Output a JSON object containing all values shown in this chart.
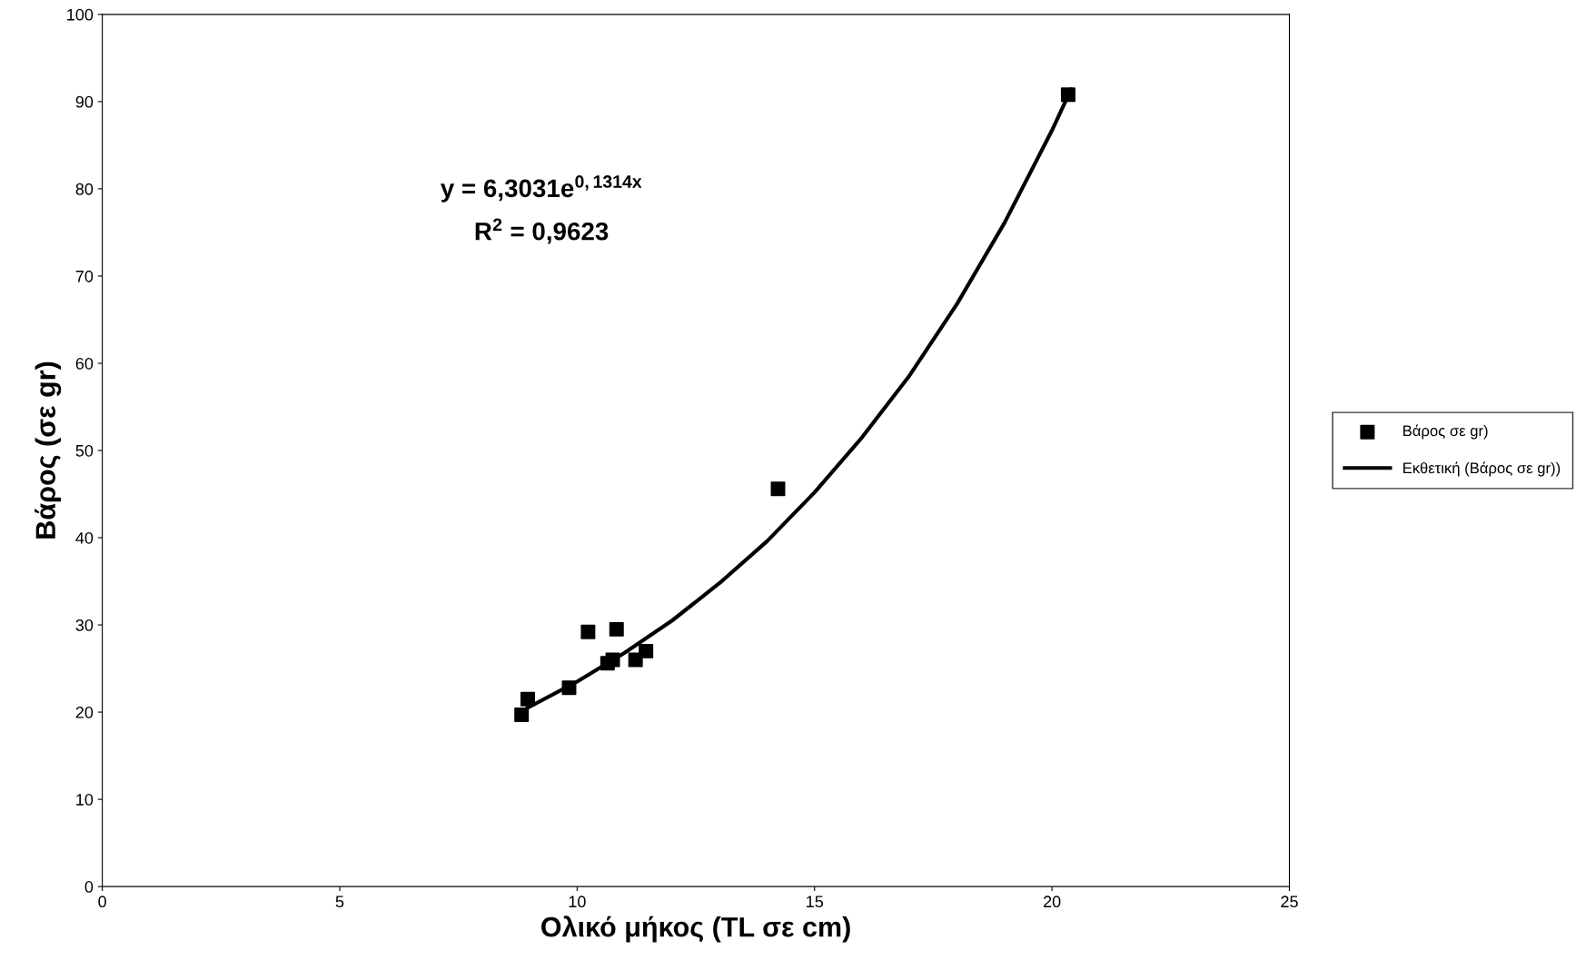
{
  "chart_data": {
    "type": "scatter",
    "xlabel": "Ολικό μήκος (TL σε cm)",
    "ylabel": "Βάρος (σε gr)",
    "xlim": [
      0,
      25
    ],
    "xticks": [
      0,
      5,
      10,
      15,
      20,
      25
    ],
    "ylim": [
      0,
      100
    ],
    "yticks": [
      0,
      10,
      20,
      30,
      40,
      50,
      60,
      70,
      80,
      90,
      100
    ],
    "grid": false,
    "legend": "right",
    "marker": "square",
    "series": [
      {
        "name": "Βάρος σε gr)",
        "color": "#000000",
        "x": [
          8.83,
          8.96,
          9.83,
          10.23,
          10.64,
          10.75,
          10.83,
          11.23,
          11.45,
          14.23,
          20.34
        ],
        "values": [
          19.7,
          21.5,
          22.8,
          29.2,
          25.6,
          26.0,
          29.5,
          26.0,
          27.0,
          45.6,
          90.8
        ]
      },
      {
        "name": "Εκθετική (Βάρος σε gr))",
        "type": "line",
        "color": "#000000",
        "marker": "none",
        "line_style": "solid",
        "x": [
          8.96,
          10,
          11,
          12,
          13,
          14,
          15,
          16,
          17,
          18,
          19,
          20,
          20.4
        ],
        "values": [
          20.5,
          23.5,
          26.8,
          30.5,
          34.8,
          39.6,
          45.2,
          51.5,
          58.6,
          66.8,
          76.1,
          86.7,
          91.4
        ]
      }
    ],
    "annotations": [
      "y = 6,3031e$^{0,1314x}$",
      "R$^{2}$ = 0,9623"
    ]
  }
}
